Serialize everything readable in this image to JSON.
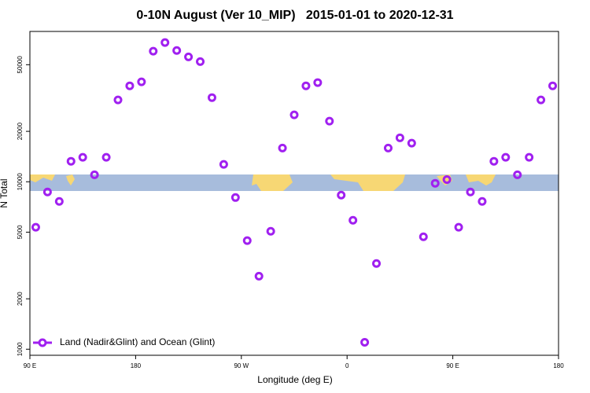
{
  "chart_data": {
    "type": "scatter",
    "title": "0-10N August (Ver 10_MIP)   2015-01-01 to 2020-12-31",
    "x_label": "Longitude (deg E)",
    "y_label": "N Total",
    "xlim": [
      90,
      540
    ],
    "xticks": [
      {
        "value": 90,
        "label": "90 E"
      },
      180,
      {
        "value": 270,
        "label": "90 W"
      },
      {
        "value": 360,
        "label": "0"
      },
      {
        "value": 450,
        "label": "90 E"
      },
      {
        "value": 540,
        "label": "180"
      }
    ],
    "ylim": [
      920,
      79000
    ],
    "yticks": [
      1000,
      2000,
      5000,
      10000,
      20000,
      50000
    ],
    "ylog": true,
    "grid": false,
    "legend": "bottom-left",
    "series": [
      {
        "name": "Land (Nadir&Glint) and Ocean (Glint)",
        "color": "#a020f0",
        "x": [
          95,
          105,
          115,
          125,
          135,
          145,
          155,
          165,
          175,
          185,
          195,
          205,
          215,
          225,
          235,
          245,
          255,
          265,
          275,
          285,
          295,
          305,
          315,
          325,
          335,
          345,
          355,
          365,
          375,
          385,
          395,
          405,
          415,
          425,
          435,
          445,
          455,
          465,
          475,
          485,
          495,
          505,
          515,
          525,
          535
        ],
        "values": [
          5350,
          8690,
          7630,
          13250,
          14000,
          11000,
          14000,
          30800,
          37400,
          39500,
          60200,
          67800,
          60800,
          55700,
          52200,
          31800,
          12700,
          8050,
          4450,
          2730,
          5060,
          15900,
          25100,
          37400,
          39100,
          23000,
          8320,
          5890,
          1100,
          3250,
          15900,
          18300,
          17000,
          4690,
          9790,
          10300,
          5350,
          8690,
          7630,
          13250,
          14000,
          11000,
          14000,
          30800,
          37400
        ]
      }
    ]
  }
}
